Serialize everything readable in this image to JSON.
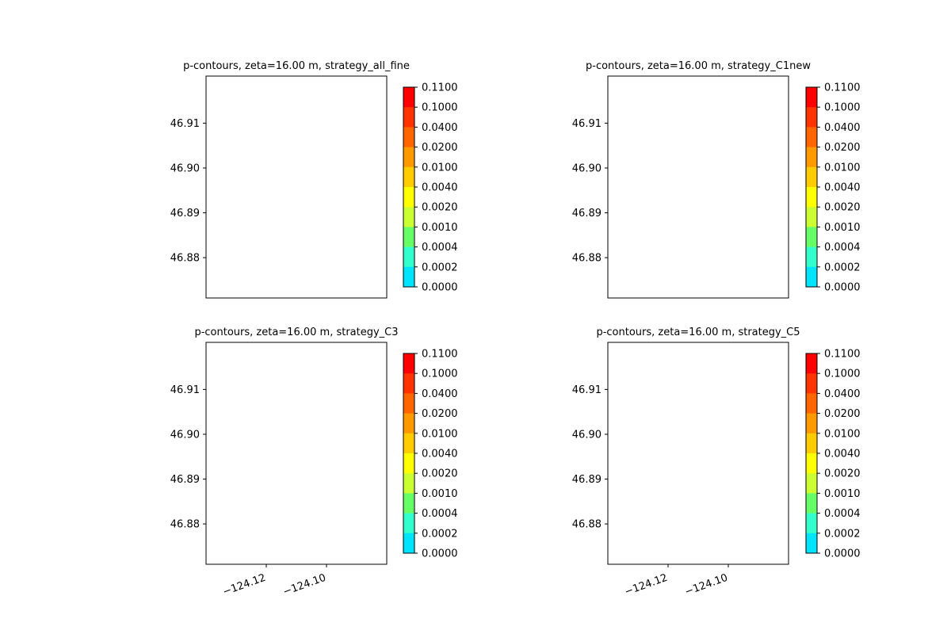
{
  "chart_data": {
    "type": "contour-map",
    "figure_layout": "2x2",
    "shared_axes": {
      "yticks": [
        "46.91",
        "46.90",
        "46.89",
        "46.88"
      ],
      "xticks": [
        "−124.12",
        "−124.10"
      ],
      "x_tick_values": [
        -124.12,
        -124.1
      ],
      "y_tick_values": [
        46.91,
        46.9,
        46.89,
        46.88
      ],
      "xlim": [
        -124.14,
        -124.08
      ],
      "ylim": [
        46.871,
        46.9205
      ],
      "grid": false
    },
    "colorbar": {
      "tick_labels": [
        "0.1100",
        "0.1000",
        "0.0400",
        "0.0200",
        "0.0100",
        "0.0040",
        "0.0020",
        "0.0010",
        "0.0004",
        "0.0002",
        "0.0000"
      ],
      "colors": [
        "#ff0000",
        "#ff3300",
        "#ff6600",
        "#ff9900",
        "#ffcc00",
        "#ffff00",
        "#ccff33",
        "#66ff66",
        "#33ffcc",
        "#00e5ff",
        "#ffffff"
      ]
    },
    "panels": [
      {
        "title": "p-contours, zeta=16.00 m, strategy_all_fine",
        "show_xticks": false
      },
      {
        "title": "p-contours, zeta=16.00 m, strategy_C1new",
        "show_xticks": false
      },
      {
        "title": "p-contours, zeta=16.00 m, strategy_C3",
        "show_xticks": true
      },
      {
        "title": "p-contours, zeta=16.00 m, strategy_C5",
        "show_xticks": true
      }
    ]
  }
}
